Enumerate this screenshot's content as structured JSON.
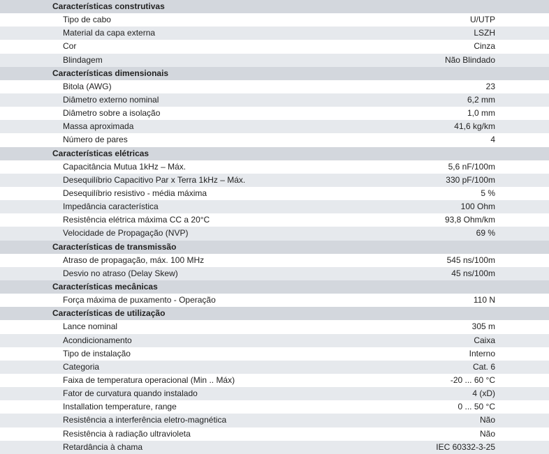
{
  "sections": [
    {
      "title": "Características construtivas",
      "rows": [
        [
          "Tipo de cabo",
          "U/UTP"
        ],
        [
          "Material da capa externa",
          "LSZH"
        ],
        [
          "Cor",
          "Cinza"
        ],
        [
          "Blindagem",
          "Não Blindado"
        ]
      ]
    },
    {
      "title": "Características dimensionais",
      "rows": [
        [
          "Bitola (AWG)",
          "23"
        ],
        [
          "Diâmetro externo nominal",
          "6,2 mm"
        ],
        [
          "Diâmetro sobre a isolação",
          "1,0 mm"
        ],
        [
          "Massa aproximada",
          "41,6 kg/km"
        ],
        [
          "Número de pares",
          "4"
        ]
      ]
    },
    {
      "title": "Características elétricas",
      "rows": [
        [
          "Capacitância Mutua 1kHz – Máx.",
          "5,6 nF/100m"
        ],
        [
          "Desequilíbrio Capacitivo Par x Terra 1kHz – Máx.",
          "330 pF/100m"
        ],
        [
          "Desequilíbrio resistivo - média máxima",
          "5 %"
        ],
        [
          "Impedância característica",
          "100 Ohm"
        ],
        [
          "Resistência elétrica máxima CC a 20°C",
          "93,8 Ohm/km"
        ],
        [
          "Velocidade de Propagação (NVP)",
          "69 %"
        ]
      ]
    },
    {
      "title": "Características de transmissão",
      "rows": [
        [
          "Atraso de propagação, máx. 100 MHz",
          "545 ns/100m"
        ],
        [
          "Desvio no atraso (Delay Skew)",
          "45 ns/100m"
        ]
      ]
    },
    {
      "title": "Características mecânicas",
      "rows": [
        [
          "Força máxima de puxamento - Operação",
          "110 N"
        ]
      ]
    },
    {
      "title": "Características de utilização",
      "rows": [
        [
          "Lance nominal",
          "305 m"
        ],
        [
          "Acondicionamento",
          "Caixa"
        ],
        [
          "Tipo de instalação",
          "Interno"
        ],
        [
          "Categoria",
          "Cat. 6"
        ],
        [
          "Faixa de temperatura operacional (Min .. Máx)",
          "-20 ... 60 °C"
        ],
        [
          "Fator de curvatura quando instalado",
          "4 (xD)"
        ],
        [
          "Installation temperature, range",
          "0 ... 50 °C"
        ],
        [
          "Resistência a interferência eletro-magnética",
          "Não"
        ],
        [
          "Resistência à radiação ultravioleta",
          "Não"
        ],
        [
          "Retardância à chama",
          "IEC 60332-3-25"
        ]
      ]
    }
  ]
}
